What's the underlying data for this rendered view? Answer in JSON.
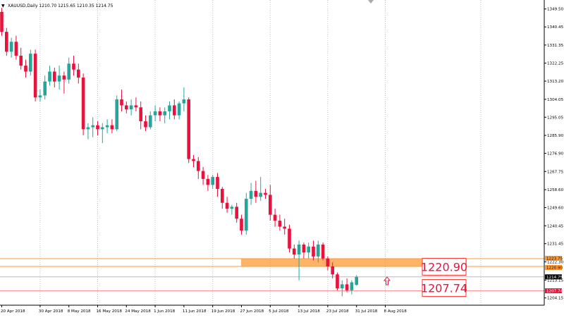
{
  "header": {
    "dropdown_glyph": "▼",
    "symbol_line": "XAUUSD,Daily  1210.70 1215.65 1210.35 1214.75"
  },
  "chart_data": {
    "type": "candlestick",
    "symbol": "XAUUSD",
    "timeframe": "Daily",
    "ohlc_readout": {
      "open": 1210.7,
      "high": 1215.65,
      "low": 1210.35,
      "close": 1214.75
    },
    "ylim": [
      1200.5,
      1354
    ],
    "y_ticks": [
      1349.5,
      1340.45,
      1331.35,
      1322.25,
      1313.2,
      1304.05,
      1295.05,
      1285.9,
      1276.9,
      1267.75,
      1258.6,
      1249.6,
      1240.45,
      1231.45,
      1222.3,
      1213.15,
      1204.15
    ],
    "x_labels": [
      {
        "label": "20 Apr 2018",
        "bar": 0
      },
      {
        "label": "30 Apr 2018",
        "bar": 8
      },
      {
        "label": "8 May 2018",
        "bar": 14
      },
      {
        "label": "16 May 2018",
        "bar": 20
      },
      {
        "label": "24 May 2018",
        "bar": 26
      },
      {
        "label": "1 Jun 2018",
        "bar": 32
      },
      {
        "label": "11 Jun 2018",
        "bar": 38
      },
      {
        "label": "19 Jun 2018",
        "bar": 44
      },
      {
        "label": "27 Jun 2018",
        "bar": 50
      },
      {
        "label": "5 Jul 2018",
        "bar": 56
      },
      {
        "label": "13 Jul 2018",
        "bar": 62
      },
      {
        "label": "23 Jul 2018",
        "bar": 68
      },
      {
        "label": "31 Jul 2018",
        "bar": 74
      },
      {
        "label": "8 Aug 2018",
        "bar": 80
      }
    ],
    "candles": [
      [
        1348,
        1350,
        1336,
        1338
      ],
      [
        1338,
        1340,
        1326,
        1328
      ],
      [
        1328,
        1335,
        1325,
        1333
      ],
      [
        1333,
        1336,
        1324,
        1326
      ],
      [
        1326,
        1330,
        1319,
        1321
      ],
      [
        1321,
        1324,
        1315,
        1318
      ],
      [
        1318,
        1329,
        1316,
        1327
      ],
      [
        1327,
        1329,
        1303,
        1305
      ],
      [
        1305,
        1309,
        1303,
        1306
      ],
      [
        1306,
        1316,
        1304,
        1313
      ],
      [
        1313,
        1321,
        1311,
        1318
      ],
      [
        1318,
        1320,
        1310,
        1313
      ],
      [
        1313,
        1321,
        1309,
        1316
      ],
      [
        1316,
        1318,
        1307,
        1314
      ],
      [
        1314,
        1325,
        1312,
        1322
      ],
      [
        1322,
        1326,
        1316,
        1319
      ],
      [
        1319,
        1322,
        1312,
        1315
      ],
      [
        1315,
        1317,
        1286,
        1289
      ],
      [
        1289,
        1292,
        1284,
        1290
      ],
      [
        1290,
        1295,
        1285,
        1291
      ],
      [
        1291,
        1293,
        1286,
        1289
      ],
      [
        1289,
        1292,
        1282,
        1290
      ],
      [
        1290,
        1294,
        1287,
        1291
      ],
      [
        1291,
        1294,
        1287,
        1289
      ],
      [
        1289,
        1306,
        1288,
        1304
      ],
      [
        1304,
        1309,
        1298,
        1301
      ],
      [
        1301,
        1303,
        1297,
        1299
      ],
      [
        1299,
        1304,
        1296,
        1301
      ],
      [
        1301,
        1305,
        1298,
        1300
      ],
      [
        1300,
        1303,
        1289,
        1293
      ],
      [
        1293,
        1296,
        1288,
        1290
      ],
      [
        1290,
        1298,
        1289,
        1296
      ],
      [
        1296,
        1301,
        1293,
        1298
      ],
      [
        1298,
        1300,
        1293,
        1296
      ],
      [
        1296,
        1300,
        1292,
        1298
      ],
      [
        1298,
        1303,
        1294,
        1301
      ],
      [
        1301,
        1304,
        1294,
        1296
      ],
      [
        1296,
        1303,
        1294,
        1302
      ],
      [
        1302,
        1310,
        1298,
        1304
      ],
      [
        1304,
        1305,
        1272,
        1274
      ],
      [
        1274,
        1276,
        1270,
        1273
      ],
      [
        1273,
        1275,
        1264,
        1268
      ],
      [
        1268,
        1270,
        1261,
        1264
      ],
      [
        1264,
        1266,
        1258,
        1261
      ],
      [
        1261,
        1266,
        1259,
        1265
      ],
      [
        1265,
        1267,
        1255,
        1259
      ],
      [
        1259,
        1260,
        1249,
        1252
      ],
      [
        1252,
        1255,
        1247,
        1249
      ],
      [
        1249,
        1251,
        1246,
        1250
      ],
      [
        1250,
        1252,
        1242,
        1244
      ],
      [
        1244,
        1246,
        1236,
        1238
      ],
      [
        1238,
        1257,
        1236,
        1254
      ],
      [
        1254,
        1262,
        1251,
        1258
      ],
      [
        1258,
        1263,
        1252,
        1255
      ],
      [
        1255,
        1265,
        1253,
        1257
      ],
      [
        1257,
        1259,
        1254,
        1256
      ],
      [
        1256,
        1261,
        1243,
        1246
      ],
      [
        1246,
        1249,
        1240,
        1243
      ],
      [
        1243,
        1246,
        1238,
        1240
      ],
      [
        1240,
        1244,
        1236,
        1239
      ],
      [
        1239,
        1241,
        1227,
        1229
      ],
      [
        1229,
        1231,
        1224,
        1226
      ],
      [
        1226,
        1233,
        1213,
        1231
      ],
      [
        1231,
        1232,
        1224,
        1227
      ],
      [
        1227,
        1232,
        1224,
        1230
      ],
      [
        1230,
        1233,
        1223,
        1225
      ],
      [
        1225,
        1233,
        1222,
        1231
      ],
      [
        1231,
        1232,
        1223,
        1224
      ],
      [
        1224,
        1225,
        1218,
        1220
      ],
      [
        1220,
        1222,
        1214,
        1216
      ],
      [
        1216,
        1217,
        1208,
        1209
      ],
      [
        1209,
        1213,
        1205,
        1211
      ],
      [
        1211,
        1214,
        1207,
        1208
      ],
      [
        1208,
        1213,
        1206,
        1212
      ],
      [
        1210.7,
        1215.65,
        1210.35,
        1214.75
      ]
    ],
    "current_price": 1214.75,
    "levels": [
      {
        "price": 1220.9,
        "label": "1220.90",
        "color": "#ff9900"
      },
      {
        "price": 1207.74,
        "label": "1207.74",
        "color": "#ff3333"
      }
    ],
    "zone_label_top": "1223.75",
    "zone_label_bottom": "1220.90",
    "colors": {
      "bull": "#26a69a",
      "bear": "#e8123c",
      "zone": "#ff9933",
      "grid": "#c0c0c0"
    }
  }
}
